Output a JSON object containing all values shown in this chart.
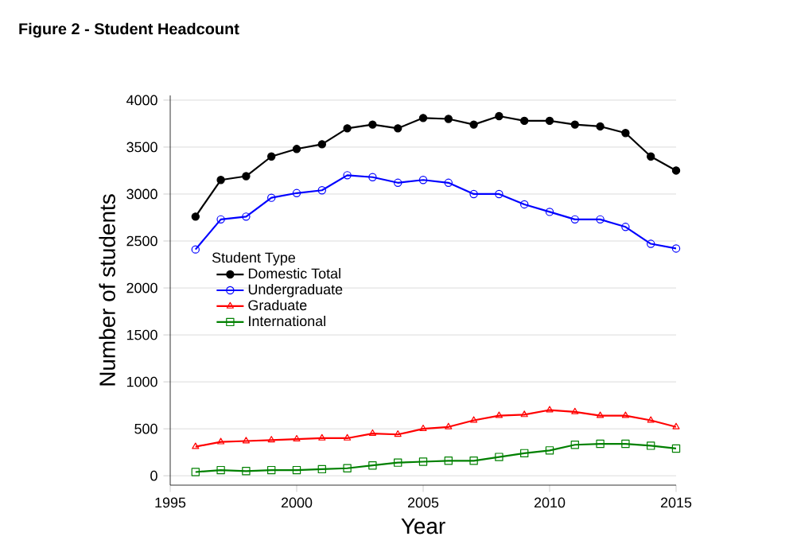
{
  "chart_data": {
    "type": "line",
    "title": "Figure 2 - Student Headcount",
    "xlabel": "Year",
    "ylabel": "Number of students",
    "legend_title": "Student Type",
    "x": [
      1996,
      1997,
      1998,
      1999,
      2000,
      2001,
      2002,
      2003,
      2004,
      2005,
      2006,
      2007,
      2008,
      2009,
      2010,
      2011,
      2012,
      2013,
      2014,
      2015
    ],
    "series": [
      {
        "name": "Domestic Total",
        "color": "#000000",
        "marker": "circle",
        "values": [
          2760,
          3150,
          3190,
          3400,
          3480,
          3530,
          3700,
          3740,
          3700,
          3810,
          3800,
          3740,
          3830,
          3780,
          3780,
          3740,
          3720,
          3650,
          3400,
          3250
        ]
      },
      {
        "name": "Undergraduate",
        "color": "#0000ff",
        "marker": "circle",
        "values": [
          2410,
          2730,
          2760,
          2960,
          3010,
          3040,
          3200,
          3180,
          3120,
          3150,
          3120,
          3000,
          3000,
          2890,
          2810,
          2730,
          2730,
          2650,
          2470,
          2420
        ]
      },
      {
        "name": "Graduate",
        "color": "#ff0000",
        "marker": "triangle",
        "values": [
          310,
          360,
          370,
          380,
          390,
          400,
          400,
          450,
          440,
          500,
          520,
          590,
          640,
          650,
          700,
          680,
          640,
          640,
          590,
          520
        ]
      },
      {
        "name": "International",
        "color": "#008000",
        "marker": "square",
        "values": [
          40,
          60,
          50,
          60,
          60,
          70,
          80,
          110,
          140,
          150,
          160,
          160,
          200,
          240,
          270,
          330,
          340,
          340,
          320,
          290
        ]
      }
    ],
    "xlim": [
      1995,
      2015
    ],
    "ylim": [
      -100,
      4050
    ],
    "xticks": [
      1995,
      2000,
      2005,
      2010,
      2015
    ],
    "yticks": [
      0,
      500,
      1000,
      1500,
      2000,
      2500,
      3000,
      3500,
      4000
    ],
    "grid": "y",
    "legend": "left",
    "line_style": "solid"
  }
}
